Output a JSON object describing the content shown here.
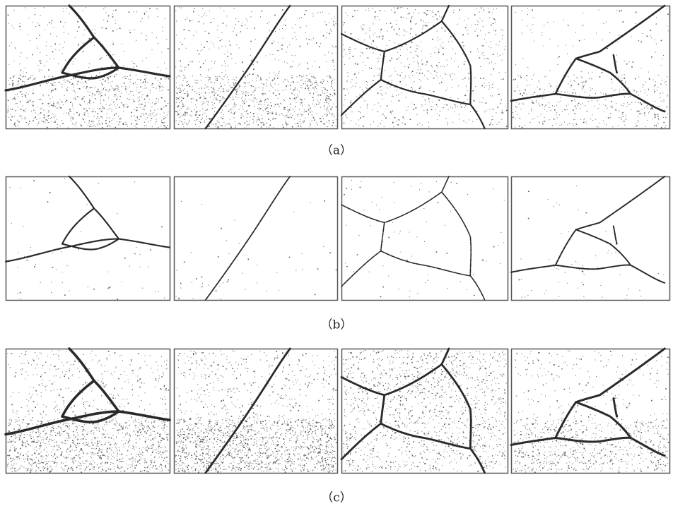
{
  "rows": [
    {
      "label": "（a）"
    },
    {
      "label": "（b）"
    },
    {
      "label": "（c）"
    }
  ]
}
